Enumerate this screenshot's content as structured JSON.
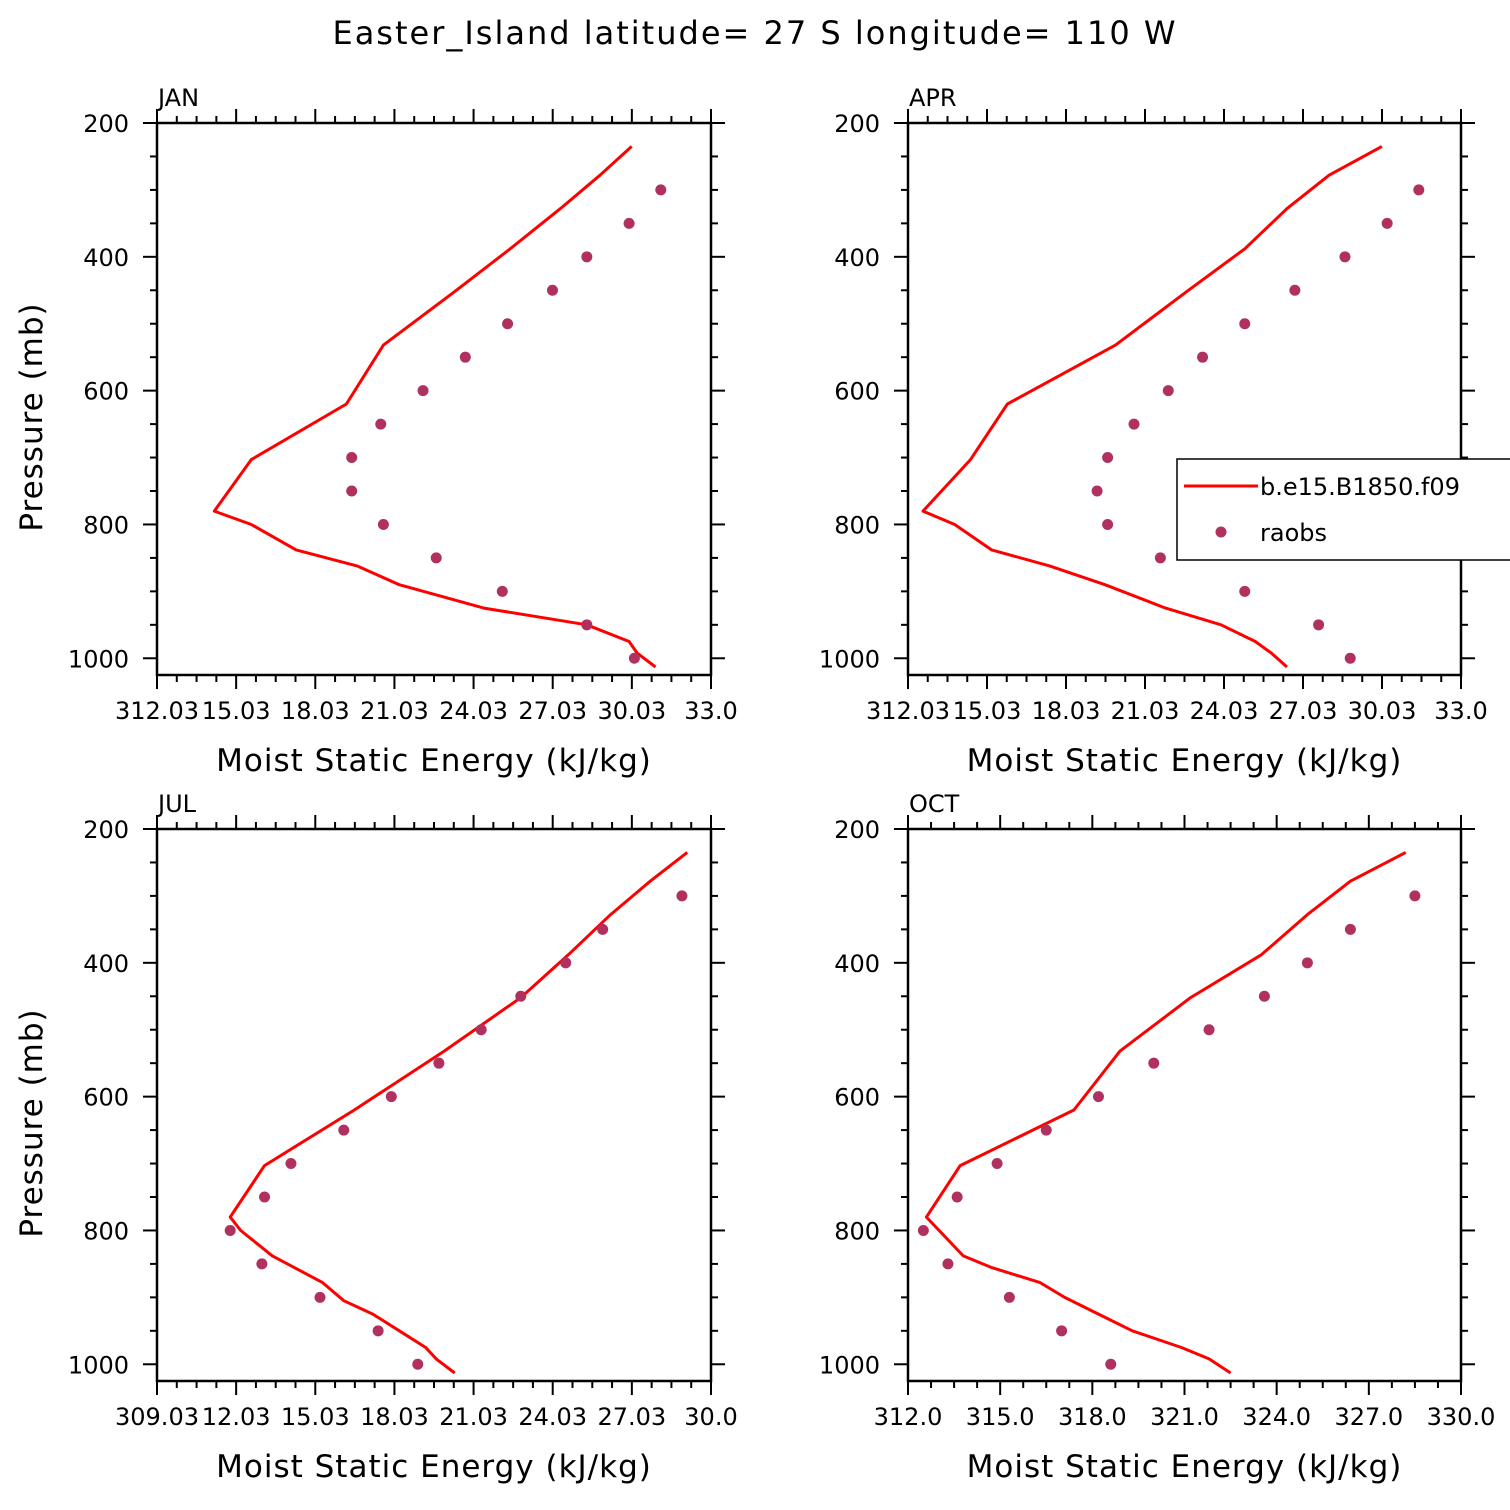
{
  "figure_title": "Easter_Island  latitude= 27 S longitude= 110 W",
  "colors": {
    "model": "#ff0000",
    "obs": "#b03060",
    "frame": "#000000"
  },
  "legend": {
    "model_label": "b.e15.B1850.f09",
    "obs_label": "raobs",
    "placement": "right-middle of APR panel"
  },
  "chart_data": [
    {
      "type": "line",
      "title": "JAN",
      "xlabel": "Moist Static Energy (kJ/kg)",
      "ylabel": "Pressure (mb)",
      "xlim": [
        312.03,
        333.0
      ],
      "ylim": [
        200,
        1025
      ],
      "x_tick_labels": [
        "312.03",
        "15.03",
        "18.03",
        "21.03",
        "24.03",
        "27.03",
        "30.03",
        "33.0"
      ],
      "y_ticks": [
        200,
        400,
        600,
        800,
        1000
      ],
      "y_tick_labels": [
        "200",
        "400",
        "600",
        "800",
        "1000"
      ],
      "series": [
        {
          "name": "b.e15.B1850.f09",
          "kind": "line",
          "points": [
            [
              330.9,
              1013
            ],
            [
              330.2,
              992
            ],
            [
              329.9,
              975
            ],
            [
              328.3,
              950
            ],
            [
              324.4,
              925
            ],
            [
              321.2,
              890
            ],
            [
              319.6,
              862
            ],
            [
              317.3,
              838
            ],
            [
              315.6,
              800
            ],
            [
              314.2,
              780
            ],
            [
              315.6,
              703
            ],
            [
              319.2,
              620
            ],
            [
              320.6,
              532
            ],
            [
              323.3,
              452
            ],
            [
              325.4,
              388
            ],
            [
              327.3,
              328
            ],
            [
              328.8,
              278
            ],
            [
              330.0,
              235
            ]
          ]
        },
        {
          "name": "raobs",
          "kind": "scatter",
          "points": [
            [
              330.1,
              1000
            ],
            [
              328.3,
              950
            ],
            [
              325.1,
              900
            ],
            [
              322.6,
              850
            ],
            [
              320.6,
              800
            ],
            [
              319.4,
              750
            ],
            [
              319.4,
              700
            ],
            [
              320.5,
              650
            ],
            [
              322.1,
              600
            ],
            [
              323.7,
              550
            ],
            [
              325.3,
              500
            ],
            [
              327.0,
              450
            ],
            [
              328.3,
              400
            ],
            [
              329.9,
              350
            ],
            [
              331.1,
              300
            ]
          ]
        }
      ]
    },
    {
      "type": "line",
      "title": "APR",
      "xlabel": "Moist Static Energy (kJ/kg)",
      "ylabel": "",
      "xlim": [
        312.03,
        333.0
      ],
      "ylim": [
        200,
        1025
      ],
      "x_tick_labels": [
        "312.03",
        "15.03",
        "18.03",
        "21.03",
        "24.03",
        "27.03",
        "30.03",
        "33.0"
      ],
      "y_ticks": [
        200,
        400,
        600,
        800,
        1000
      ],
      "y_tick_labels": [
        "200",
        "400",
        "600",
        "800",
        "1000"
      ],
      "series": [
        {
          "name": "b.e15.B1850.f09",
          "kind": "line",
          "points": [
            [
              326.4,
              1013
            ],
            [
              325.8,
              992
            ],
            [
              325.2,
              975
            ],
            [
              323.9,
              950
            ],
            [
              321.8,
              925
            ],
            [
              319.5,
              890
            ],
            [
              317.4,
              862
            ],
            [
              315.2,
              838
            ],
            [
              313.8,
              800
            ],
            [
              312.6,
              780
            ],
            [
              314.4,
              703
            ],
            [
              315.8,
              620
            ],
            [
              319.9,
              532
            ],
            [
              322.6,
              452
            ],
            [
              324.8,
              388
            ],
            [
              326.4,
              328
            ],
            [
              328.0,
              278
            ],
            [
              330.0,
              235
            ]
          ]
        },
        {
          "name": "raobs",
          "kind": "scatter",
          "points": [
            [
              328.8,
              1000
            ],
            [
              327.6,
              950
            ],
            [
              324.8,
              900
            ],
            [
              321.6,
              850
            ],
            [
              319.6,
              800
            ],
            [
              319.2,
              750
            ],
            [
              319.6,
              700
            ],
            [
              320.6,
              650
            ],
            [
              321.9,
              600
            ],
            [
              323.2,
              550
            ],
            [
              324.8,
              500
            ],
            [
              326.7,
              450
            ],
            [
              328.6,
              400
            ],
            [
              330.2,
              350
            ],
            [
              331.4,
              300
            ]
          ]
        }
      ]
    },
    {
      "type": "line",
      "title": "JUL",
      "xlabel": "Moist Static Energy (kJ/kg)",
      "ylabel": "Pressure (mb)",
      "xlim": [
        309.03,
        330.0
      ],
      "ylim": [
        200,
        1025
      ],
      "x_tick_labels": [
        "309.03",
        "12.03",
        "15.03",
        "18.03",
        "21.03",
        "24.03",
        "27.03",
        "30.0"
      ],
      "y_ticks": [
        200,
        400,
        600,
        800,
        1000
      ],
      "y_tick_labels": [
        "200",
        "400",
        "600",
        "800",
        "1000"
      ],
      "series": [
        {
          "name": "b.e15.B1850.f09",
          "kind": "line",
          "points": [
            [
              320.3,
              1013
            ],
            [
              319.6,
              992
            ],
            [
              319.2,
              975
            ],
            [
              318.2,
              950
            ],
            [
              317.2,
              925
            ],
            [
              316.1,
              905
            ],
            [
              315.3,
              878
            ],
            [
              313.4,
              838
            ],
            [
              312.2,
              800
            ],
            [
              311.8,
              780
            ],
            [
              313.1,
              703
            ],
            [
              316.5,
              620
            ],
            [
              319.9,
              532
            ],
            [
              322.8,
              452
            ],
            [
              324.6,
              388
            ],
            [
              326.2,
              328
            ],
            [
              327.7,
              278
            ],
            [
              329.1,
              235
            ]
          ]
        },
        {
          "name": "raobs",
          "kind": "scatter",
          "points": [
            [
              318.9,
              1000
            ],
            [
              317.4,
              950
            ],
            [
              315.2,
              900
            ],
            [
              313.0,
              850
            ],
            [
              311.8,
              800
            ],
            [
              313.1,
              750
            ],
            [
              314.1,
              700
            ],
            [
              316.1,
              650
            ],
            [
              317.9,
              600
            ],
            [
              319.7,
              550
            ],
            [
              321.3,
              500
            ],
            [
              322.8,
              450
            ],
            [
              324.5,
              400
            ],
            [
              325.9,
              350
            ],
            [
              328.9,
              300
            ]
          ]
        }
      ]
    },
    {
      "type": "line",
      "title": "OCT",
      "xlabel": "Moist Static Energy (kJ/kg)",
      "ylabel": "",
      "xlim": [
        312.0,
        330.0
      ],
      "ylim": [
        200,
        1025
      ],
      "x_tick_labels": [
        "312.0",
        "315.0",
        "318.0",
        "321.0",
        "324.0",
        "327.0",
        "330.0"
      ],
      "y_ticks": [
        200,
        400,
        600,
        800,
        1000
      ],
      "y_tick_labels": [
        "200",
        "400",
        "600",
        "800",
        "1000"
      ],
      "series": [
        {
          "name": "b.e15.B1850.f09",
          "kind": "line",
          "points": [
            [
              322.5,
              1013
            ],
            [
              321.8,
              992
            ],
            [
              320.9,
              975
            ],
            [
              319.3,
              950
            ],
            [
              318.2,
              925
            ],
            [
              317.1,
              900
            ],
            [
              316.3,
              878
            ],
            [
              314.7,
              855
            ],
            [
              313.8,
              838
            ],
            [
              312.6,
              780
            ],
            [
              313.7,
              703
            ],
            [
              317.4,
              620
            ],
            [
              318.9,
              532
            ],
            [
              321.2,
              452
            ],
            [
              323.5,
              388
            ],
            [
              325.0,
              328
            ],
            [
              326.4,
              278
            ],
            [
              328.2,
              235
            ]
          ]
        },
        {
          "name": "raobs",
          "kind": "scatter",
          "points": [
            [
              318.6,
              1000
            ],
            [
              317.0,
              950
            ],
            [
              315.3,
              900
            ],
            [
              313.3,
              850
            ],
            [
              312.5,
              800
            ],
            [
              313.6,
              750
            ],
            [
              314.9,
              700
            ],
            [
              316.5,
              650
            ],
            [
              318.2,
              600
            ],
            [
              320.0,
              550
            ],
            [
              321.8,
              500
            ],
            [
              323.6,
              450
            ],
            [
              325.0,
              400
            ],
            [
              326.4,
              350
            ],
            [
              328.5,
              300
            ]
          ]
        }
      ]
    }
  ]
}
